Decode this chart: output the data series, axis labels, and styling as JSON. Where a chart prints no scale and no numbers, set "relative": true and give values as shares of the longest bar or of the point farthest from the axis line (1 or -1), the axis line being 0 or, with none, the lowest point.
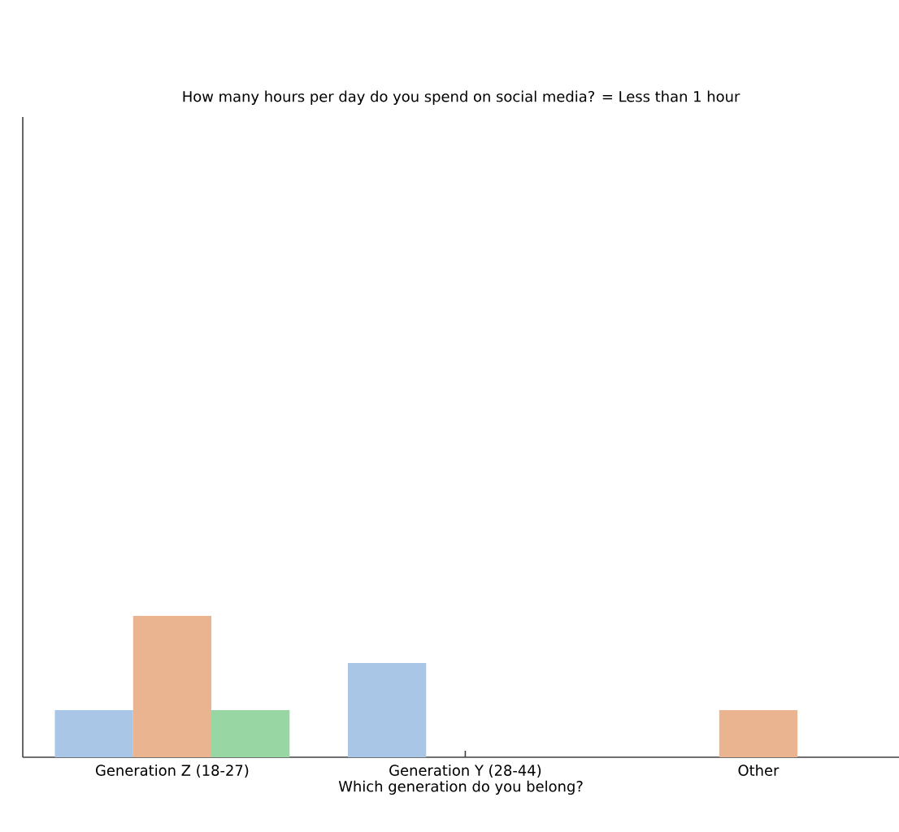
{
  "chart_data": {
    "type": "bar",
    "title": "How many hours per day do you spend on social media? = Less than 1 hour",
    "xlabel": "Which generation do you belong?",
    "relative": true,
    "categories": [
      "Generation Z (18-27)",
      "Generation Y (28-44)",
      "Other"
    ],
    "series": [
      {
        "color": "#a9c6e6",
        "values": [
          0.333,
          0.667,
          0
        ]
      },
      {
        "color": "#e9b48f",
        "values": [
          1,
          0,
          0.333
        ]
      },
      {
        "color": "#98d6a3",
        "values": [
          0.333,
          0,
          0
        ]
      }
    ]
  }
}
